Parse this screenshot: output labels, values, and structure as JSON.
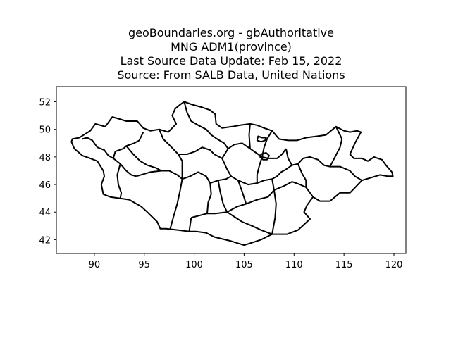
{
  "title": {
    "lines": [
      "geoBoundaries.org - gbAuthoritative",
      "MNG ADM1(province)",
      "Last Source Data Update: Feb 15, 2022",
      "Source: From SALB Data, United Nations"
    ]
  },
  "chart_data": {
    "type": "map",
    "region": "MNG ADM1(province)",
    "xlim": [
      86.2,
      121.2
    ],
    "ylim": [
      41.0,
      53.1
    ],
    "xticks": [
      90,
      95,
      100,
      105,
      110,
      115,
      120
    ],
    "yticks": [
      42,
      44,
      46,
      48,
      50,
      52
    ],
    "grid": false,
    "legend": "none",
    "outline": [
      [
        87.8,
        49.3
      ],
      [
        88.5,
        49.4
      ],
      [
        89.6,
        49.9
      ],
      [
        90.1,
        50.4
      ],
      [
        91.1,
        50.2
      ],
      [
        91.8,
        50.9
      ],
      [
        92.3,
        50.8
      ],
      [
        93.2,
        50.6
      ],
      [
        94.3,
        50.6
      ],
      [
        94.9,
        50.1
      ],
      [
        95.6,
        49.9
      ],
      [
        96.5,
        50.0
      ],
      [
        97.4,
        49.8
      ],
      [
        98.2,
        50.4
      ],
      [
        97.8,
        51.0
      ],
      [
        98.1,
        51.5
      ],
      [
        98.6,
        51.8
      ],
      [
        99.0,
        52.0
      ],
      [
        99.8,
        51.8
      ],
      [
        100.8,
        51.6
      ],
      [
        101.6,
        51.4
      ],
      [
        102.1,
        51.1
      ],
      [
        102.2,
        50.4
      ],
      [
        102.8,
        50.1
      ],
      [
        103.8,
        50.2
      ],
      [
        104.6,
        50.3
      ],
      [
        105.6,
        50.4
      ],
      [
        106.3,
        50.3
      ],
      [
        107.0,
        50.1
      ],
      [
        107.8,
        49.9
      ],
      [
        108.5,
        49.3
      ],
      [
        109.4,
        49.2
      ],
      [
        110.3,
        49.2
      ],
      [
        111.2,
        49.4
      ],
      [
        112.3,
        49.5
      ],
      [
        113.2,
        49.6
      ],
      [
        114.2,
        50.2
      ],
      [
        115.0,
        49.9
      ],
      [
        115.6,
        49.8
      ],
      [
        116.3,
        49.9
      ],
      [
        116.7,
        49.8
      ],
      [
        116.1,
        49.0
      ],
      [
        115.6,
        48.2
      ],
      [
        116.0,
        47.9
      ],
      [
        116.8,
        47.9
      ],
      [
        117.4,
        47.7
      ],
      [
        118.0,
        48.0
      ],
      [
        118.8,
        47.8
      ],
      [
        119.2,
        47.4
      ],
      [
        119.8,
        46.9
      ],
      [
        119.9,
        46.6
      ],
      [
        119.4,
        46.6
      ],
      [
        118.6,
        46.7
      ],
      [
        117.7,
        46.5
      ],
      [
        116.8,
        46.3
      ],
      [
        116.0,
        45.7
      ],
      [
        115.6,
        45.4
      ],
      [
        114.6,
        45.4
      ],
      [
        113.6,
        44.8
      ],
      [
        112.6,
        44.8
      ],
      [
        111.9,
        45.1
      ],
      [
        111.3,
        44.5
      ],
      [
        111.0,
        44.0
      ],
      [
        111.6,
        43.5
      ],
      [
        110.4,
        42.7
      ],
      [
        109.3,
        42.4
      ],
      [
        107.8,
        42.4
      ],
      [
        106.7,
        42.0
      ],
      [
        105.0,
        41.6
      ],
      [
        103.7,
        41.9
      ],
      [
        102.0,
        42.2
      ],
      [
        101.2,
        42.5
      ],
      [
        100.2,
        42.6
      ],
      [
        99.5,
        42.6
      ],
      [
        97.2,
        42.8
      ],
      [
        96.6,
        42.8
      ],
      [
        96.3,
        43.3
      ],
      [
        95.3,
        44.0
      ],
      [
        94.7,
        44.4
      ],
      [
        93.5,
        44.9
      ],
      [
        92.6,
        45.0
      ],
      [
        91.6,
        45.1
      ],
      [
        90.9,
        45.3
      ],
      [
        90.7,
        46.0
      ],
      [
        91.0,
        46.6
      ],
      [
        90.9,
        47.0
      ],
      [
        90.3,
        47.7
      ],
      [
        89.6,
        47.9
      ],
      [
        88.8,
        48.1
      ],
      [
        88.0,
        48.6
      ],
      [
        87.7,
        49.1
      ],
      [
        87.8,
        49.3
      ]
    ],
    "boundaries": [
      [
        [
          90.3,
          48.7
        ],
        [
          91.0,
          48.5
        ],
        [
          91.4,
          48.1
        ],
        [
          91.9,
          47.9
        ],
        [
          92.1,
          48.4
        ],
        [
          92.9,
          48.6
        ],
        [
          93.2,
          48.8
        ],
        [
          94.0,
          49.0
        ],
        [
          94.5,
          49.2
        ],
        [
          94.9,
          49.8
        ]
      ],
      [
        [
          90.3,
          48.7
        ],
        [
          89.8,
          49.2
        ],
        [
          89.3,
          49.4
        ],
        [
          88.8,
          49.3
        ]
      ],
      [
        [
          91.9,
          47.9
        ],
        [
          92.6,
          47.5
        ],
        [
          93.2,
          47.0
        ],
        [
          93.7,
          46.7
        ],
        [
          94.2,
          46.6
        ]
      ],
      [
        [
          92.6,
          47.5
        ],
        [
          92.3,
          46.7
        ],
        [
          92.4,
          46.0
        ],
        [
          92.7,
          45.4
        ],
        [
          92.6,
          45.0
        ]
      ],
      [
        [
          94.2,
          46.6
        ],
        [
          95.6,
          46.9
        ],
        [
          96.7,
          47.0
        ],
        [
          97.5,
          47.0
        ],
        [
          98.3,
          46.7
        ],
        [
          98.8,
          46.4
        ]
      ],
      [
        [
          93.2,
          48.8
        ],
        [
          93.9,
          48.2
        ],
        [
          94.6,
          47.7
        ],
        [
          95.3,
          47.4
        ],
        [
          96.2,
          47.2
        ],
        [
          96.7,
          47.0
        ]
      ],
      [
        [
          96.5,
          50.0
        ],
        [
          96.9,
          49.3
        ],
        [
          97.6,
          48.8
        ],
        [
          98.4,
          48.2
        ],
        [
          98.8,
          47.7
        ],
        [
          98.8,
          46.4
        ]
      ],
      [
        [
          98.8,
          46.4
        ],
        [
          98.6,
          45.6
        ],
        [
          98.3,
          44.6
        ],
        [
          97.9,
          43.6
        ],
        [
          97.6,
          42.8
        ]
      ],
      [
        [
          98.8,
          46.4
        ],
        [
          99.6,
          46.6
        ],
        [
          100.4,
          46.9
        ],
        [
          101.2,
          46.6
        ],
        [
          101.6,
          46.1
        ],
        [
          101.7,
          45.3
        ],
        [
          101.4,
          44.7
        ],
        [
          101.3,
          43.9
        ]
      ],
      [
        [
          99.0,
          52.0
        ],
        [
          99.3,
          51.2
        ],
        [
          99.7,
          50.6
        ],
        [
          100.4,
          50.3
        ],
        [
          101.2,
          50.0
        ],
        [
          101.7,
          49.6
        ],
        [
          102.3,
          49.3
        ],
        [
          103.0,
          49.0
        ],
        [
          103.4,
          48.6
        ]
      ],
      [
        [
          98.4,
          48.2
        ],
        [
          99.3,
          48.2
        ],
        [
          100.1,
          48.4
        ],
        [
          100.8,
          48.7
        ],
        [
          101.6,
          48.5
        ],
        [
          102.0,
          48.2
        ],
        [
          102.8,
          47.9
        ],
        [
          103.4,
          48.6
        ]
      ],
      [
        [
          102.8,
          47.9
        ],
        [
          103.3,
          47.1
        ],
        [
          103.7,
          46.6
        ],
        [
          104.4,
          46.3
        ]
      ],
      [
        [
          101.6,
          46.1
        ],
        [
          102.4,
          46.3
        ],
        [
          103.2,
          46.4
        ],
        [
          103.7,
          46.6
        ]
      ],
      [
        [
          102.4,
          46.3
        ],
        [
          102.6,
          45.5
        ],
        [
          102.9,
          44.6
        ],
        [
          103.3,
          44.0
        ]
      ],
      [
        [
          99.7,
          43.6
        ],
        [
          101.3,
          43.9
        ],
        [
          102.1,
          43.9
        ],
        [
          103.3,
          44.0
        ],
        [
          104.3,
          44.4
        ],
        [
          105.2,
          44.6
        ],
        [
          106.3,
          44.9
        ],
        [
          107.4,
          45.1
        ],
        [
          108.0,
          45.6
        ]
      ],
      [
        [
          103.3,
          44.0
        ],
        [
          104.8,
          43.3
        ],
        [
          105.8,
          43.0
        ],
        [
          106.7,
          42.7
        ],
        [
          107.8,
          42.4
        ]
      ],
      [
        [
          99.7,
          43.6
        ],
        [
          99.5,
          42.6
        ]
      ],
      [
        [
          104.4,
          46.3
        ],
        [
          105.4,
          46.0
        ],
        [
          106.3,
          46.1
        ],
        [
          107.0,
          46.3
        ],
        [
          107.8,
          46.4
        ],
        [
          108.3,
          46.6
        ],
        [
          108.7,
          46.9
        ],
        [
          109.2,
          47.1
        ],
        [
          109.8,
          47.4
        ],
        [
          110.4,
          47.5
        ]
      ],
      [
        [
          104.4,
          46.3
        ],
        [
          104.8,
          45.5
        ],
        [
          105.2,
          44.6
        ]
      ],
      [
        [
          107.8,
          46.4
        ],
        [
          108.0,
          45.6
        ],
        [
          108.2,
          44.6
        ],
        [
          108.1,
          43.6
        ],
        [
          107.8,
          42.4
        ]
      ],
      [
        [
          108.0,
          45.6
        ],
        [
          109.0,
          45.9
        ],
        [
          109.8,
          46.2
        ],
        [
          110.6,
          46.0
        ],
        [
          111.2,
          45.8
        ],
        [
          111.9,
          45.1
        ]
      ],
      [
        [
          103.4,
          48.6
        ],
        [
          104.0,
          48.9
        ],
        [
          104.8,
          49.0
        ],
        [
          105.6,
          48.6
        ],
        [
          106.2,
          48.3
        ],
        [
          106.8,
          48.0
        ],
        [
          107.4,
          47.9
        ],
        [
          108.3,
          47.9
        ],
        [
          108.8,
          48.2
        ],
        [
          109.2,
          48.6
        ]
      ],
      [
        [
          105.6,
          50.4
        ],
        [
          105.5,
          49.6
        ],
        [
          105.6,
          48.6
        ]
      ],
      [
        [
          106.8,
          48.0
        ],
        [
          107.0,
          48.7
        ],
        [
          107.3,
          49.3
        ],
        [
          107.8,
          49.9
        ]
      ],
      [
        [
          106.8,
          48.0
        ],
        [
          106.5,
          47.3
        ],
        [
          106.3,
          46.7
        ],
        [
          106.3,
          46.1
        ]
      ],
      [
        [
          109.2,
          48.6
        ],
        [
          109.4,
          47.9
        ],
        [
          109.8,
          47.4
        ]
      ],
      [
        [
          110.4,
          47.5
        ],
        [
          110.9,
          47.9
        ],
        [
          111.6,
          48.0
        ],
        [
          112.4,
          47.8
        ],
        [
          113.0,
          47.4
        ],
        [
          113.6,
          47.3
        ]
      ],
      [
        [
          113.6,
          47.3
        ],
        [
          114.1,
          48.0
        ],
        [
          114.6,
          48.7
        ],
        [
          114.8,
          49.3
        ],
        [
          114.2,
          50.2
        ]
      ],
      [
        [
          110.4,
          47.5
        ],
        [
          110.8,
          46.8
        ],
        [
          111.2,
          46.3
        ],
        [
          111.2,
          45.8
        ]
      ],
      [
        [
          113.6,
          47.3
        ],
        [
          114.6,
          47.3
        ],
        [
          115.6,
          47.0
        ],
        [
          116.1,
          46.6
        ],
        [
          116.8,
          46.3
        ]
      ]
    ],
    "enclaves": [
      [
        [
          106.4,
          49.5
        ],
        [
          106.8,
          49.4
        ],
        [
          107.2,
          49.4
        ],
        [
          107.1,
          49.2
        ],
        [
          106.7,
          49.1
        ],
        [
          106.3,
          49.2
        ],
        [
          106.4,
          49.5
        ]
      ],
      [
        [
          106.7,
          48.2
        ],
        [
          107.2,
          48.3
        ],
        [
          107.5,
          48.1
        ],
        [
          107.3,
          47.8
        ],
        [
          106.9,
          47.8
        ],
        [
          106.6,
          48.0
        ],
        [
          106.7,
          48.2
        ]
      ]
    ]
  }
}
